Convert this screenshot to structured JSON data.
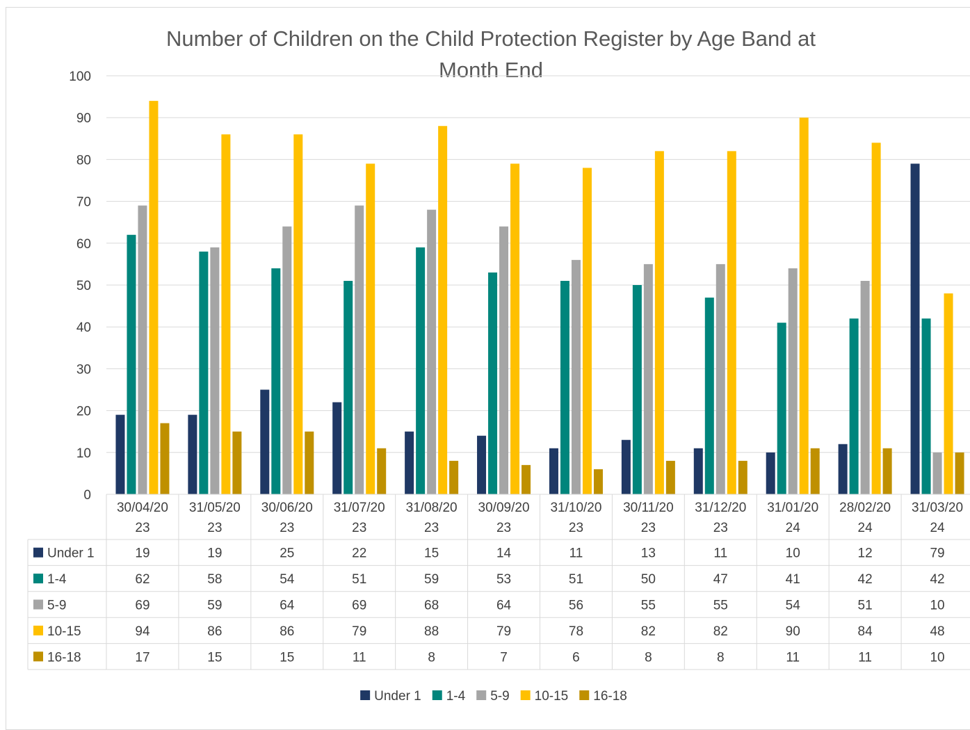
{
  "chart_data": {
    "type": "bar",
    "title_lines": [
      "Number of Children on the Child Protection Register by Age Band at",
      "Month End"
    ],
    "xlabel": "",
    "ylabel": "",
    "ylim": [
      0,
      100
    ],
    "y_ticks": [
      0,
      10,
      20,
      30,
      40,
      50,
      60,
      70,
      80,
      90,
      100
    ],
    "grid": true,
    "legend_position": "bottom",
    "data_table": true,
    "categories": [
      [
        "30/04/20",
        "23"
      ],
      [
        "31/05/20",
        "23"
      ],
      [
        "30/06/20",
        "23"
      ],
      [
        "31/07/20",
        "23"
      ],
      [
        "31/08/20",
        "23"
      ],
      [
        "30/09/20",
        "23"
      ],
      [
        "31/10/20",
        "23"
      ],
      [
        "30/11/20",
        "23"
      ],
      [
        "31/12/20",
        "23"
      ],
      [
        "31/01/20",
        "24"
      ],
      [
        "28/02/20",
        "24"
      ],
      [
        "31/03/20",
        "24"
      ]
    ],
    "series": [
      {
        "name": "Under 1",
        "color": "#1f3864",
        "values": [
          19,
          19,
          25,
          22,
          15,
          14,
          11,
          13,
          11,
          10,
          12,
          79
        ]
      },
      {
        "name": "1-4",
        "color": "#00857c",
        "values": [
          62,
          58,
          54,
          51,
          59,
          53,
          51,
          50,
          47,
          41,
          42,
          42
        ]
      },
      {
        "name": "5-9",
        "color": "#a5a5a5",
        "values": [
          69,
          59,
          64,
          69,
          68,
          64,
          56,
          55,
          55,
          54,
          51,
          10
        ]
      },
      {
        "name": "10-15",
        "color": "#ffc000",
        "values": [
          94,
          86,
          86,
          79,
          88,
          79,
          78,
          82,
          82,
          90,
          84,
          48
        ]
      },
      {
        "name": "16-18",
        "color": "#bf9000",
        "values": [
          17,
          15,
          15,
          11,
          8,
          7,
          6,
          8,
          8,
          11,
          11,
          10
        ]
      }
    ]
  }
}
